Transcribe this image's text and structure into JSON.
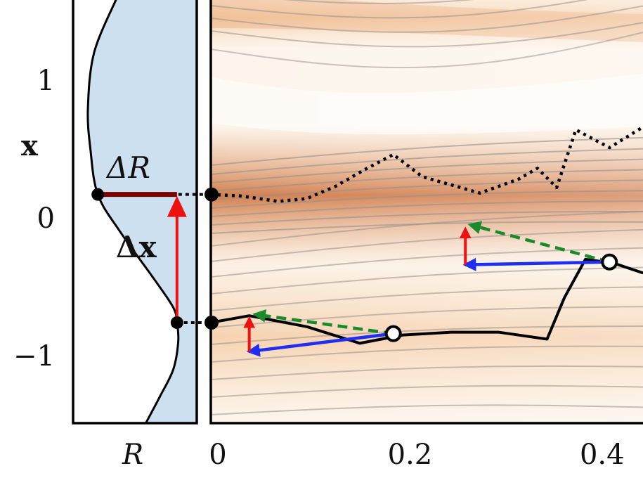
{
  "chart_data": [
    {
      "panel": "left",
      "type": "line",
      "description_of_content": "density R(x) with shaded area; vertical axis x",
      "xlabel": "R",
      "ylabel": "x",
      "y_ticks": [
        {
          "value": 1,
          "label": "1"
        },
        {
          "value": 0,
          "label": "0"
        },
        {
          "value": -1,
          "label": "−1"
        }
      ],
      "ylim": [
        -1.52,
        1.59
      ],
      "curve_R": [
        {
          "x": 1.59,
          "R": 0.35
        },
        {
          "x": 1.2,
          "R": 0.17
        },
        {
          "x": 0.8,
          "R": 0.12
        },
        {
          "x": 0.5,
          "R": 0.14
        },
        {
          "x": 0.17,
          "R": 0.2
        },
        {
          "x": -0.1,
          "R": 0.38
        },
        {
          "x": -0.45,
          "R": 0.66
        },
        {
          "x": -0.65,
          "R": 0.81
        },
        {
          "x": -0.76,
          "R": 0.84
        },
        {
          "x": -0.9,
          "R": 0.85
        },
        {
          "x": -1.1,
          "R": 0.81
        },
        {
          "x": -1.3,
          "R": 0.7
        },
        {
          "x": -1.52,
          "R": 0.57
        }
      ],
      "points": [
        {
          "x": 0.17,
          "R": 0.2
        },
        {
          "x": -0.76,
          "R": 0.84
        }
      ],
      "annotations": {
        "delta_R": "ΔR",
        "delta_x": "Δx"
      },
      "colors": {
        "fill": "#cce0f0",
        "curve": "#000000",
        "delta_R_bar": "#7a0000",
        "delta_x_arrow": "#ee1111"
      }
    },
    {
      "panel": "right",
      "type": "line",
      "description_of_content": "trajectories over a contoured density field",
      "x_ticks": [
        {
          "value": 0,
          "label": "0"
        },
        {
          "value": 0.2,
          "label": "0.2"
        },
        {
          "value": 0.4,
          "label": "0.4"
        }
      ],
      "xlim": [
        0,
        0.45
      ],
      "ylim": [
        -1.52,
        1.59
      ],
      "series": [
        {
          "name": "dotted trajectory",
          "style": "dotted",
          "points": [
            [
              0,
              0.17
            ],
            [
              0.03,
              0.16
            ],
            [
              0.07,
              0.12
            ],
            [
              0.1,
              0.14
            ],
            [
              0.13,
              0.23
            ],
            [
              0.16,
              0.35
            ],
            [
              0.19,
              0.46
            ],
            [
              0.22,
              0.3
            ],
            [
              0.28,
              0.18
            ],
            [
              0.32,
              0.28
            ],
            [
              0.34,
              0.36
            ],
            [
              0.36,
              0.22
            ],
            [
              0.38,
              0.64
            ],
            [
              0.415,
              0.51
            ],
            [
              0.45,
              0.66
            ]
          ]
        },
        {
          "name": "solid trajectory",
          "style": "solid",
          "points": [
            [
              0,
              -0.76
            ],
            [
              0.04,
              -0.71
            ],
            [
              0.1,
              -0.79
            ],
            [
              0.155,
              -0.91
            ],
            [
              0.2,
              -0.85
            ],
            [
              0.25,
              -0.83
            ],
            [
              0.3,
              -0.83
            ],
            [
              0.35,
              -0.88
            ],
            [
              0.368,
              -0.58
            ],
            [
              0.39,
              -0.3
            ],
            [
              0.42,
              -0.33
            ],
            [
              0.45,
              -0.4
            ]
          ]
        }
      ],
      "markers": [
        {
          "x": 0.19,
          "y": -0.84
        },
        {
          "x": 0.415,
          "y": -0.32
        }
      ],
      "arrow_groups": [
        {
          "origin": {
            "x": 0.19,
            "y": -0.84
          },
          "blue_end": {
            "x": 0.04,
            "y": -0.97
          },
          "red": {
            "from": {
              "x": 0.04,
              "y": -0.97
            },
            "to": {
              "x": 0.04,
              "y": -0.73
            }
          },
          "green_dashed_end": {
            "x": 0.046,
            "y": -0.7
          }
        },
        {
          "origin": {
            "x": 0.415,
            "y": -0.32
          },
          "blue_end": {
            "x": 0.265,
            "y": -0.34
          },
          "red": {
            "from": {
              "x": 0.265,
              "y": -0.34
            },
            "to": {
              "x": 0.265,
              "y": -0.08
            }
          },
          "green_dashed_end": {
            "x": 0.27,
            "y": -0.05
          }
        }
      ],
      "colors": {
        "blue": "#1f2ef0",
        "red": "#ee1111",
        "green": "#1b8a2c",
        "contour": "#9a9089",
        "field": "#d9844a",
        "trajectory": "#000000"
      }
    }
  ]
}
